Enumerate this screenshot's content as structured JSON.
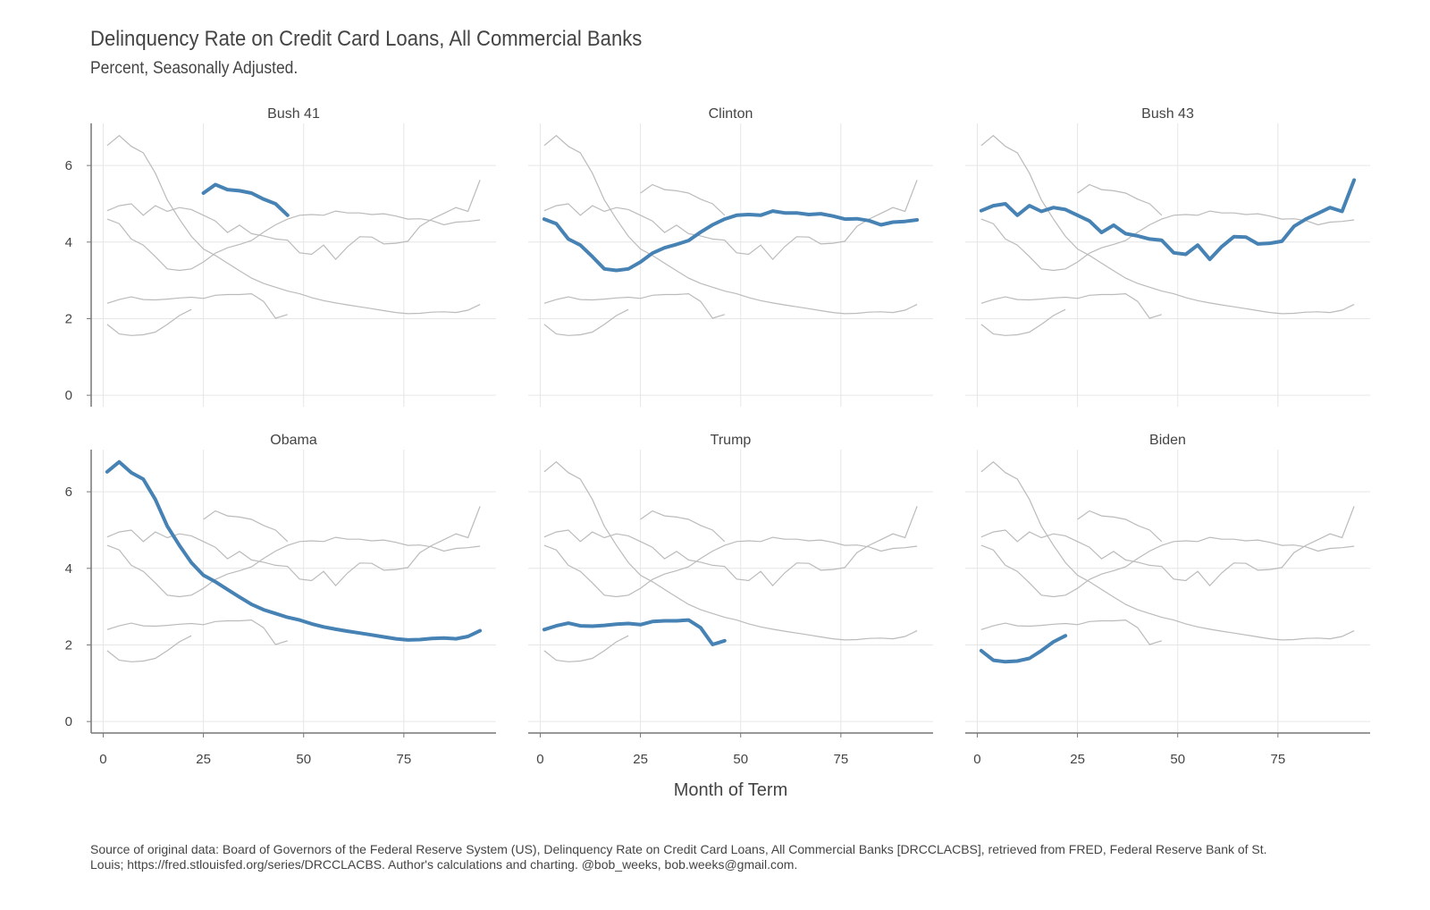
{
  "chart_data": {
    "type": "line",
    "title": "Delinquency Rate on Credit Card Loans, All Commercial Banks",
    "subtitle": "Percent, Seasonally Adjusted.",
    "xlabel": "Month of Term",
    "ylabel": "",
    "xlim": [
      -3,
      98
    ],
    "ylim": [
      -0.3,
      7.1
    ],
    "x_ticks": [
      0,
      25,
      50,
      75
    ],
    "y_ticks": [
      0,
      2,
      4,
      6
    ],
    "grid": true,
    "highlight_color": "#4682b4",
    "context_color": "#bbbbbb",
    "caption": "Source of original data: Board of Governors of the Federal Reserve System (US), Delinquency Rate on Credit Card Loans, All Commercial Banks [DRCCLACBS], retrieved from FRED, Federal Reserve Bank of St. Louis; https://fred.stlouisfed.org/series/DRCCLACBS. Author's calculations and charting. @bob_weeks, bob.weeks@gmail.com.",
    "panels": [
      "Bush 41",
      "Clinton",
      "Bush 43",
      "Obama",
      "Trump",
      "Biden"
    ],
    "series": [
      {
        "name": "Bush 41",
        "x": [
          25,
          28,
          31,
          34,
          37,
          40,
          43,
          46
        ],
        "y": [
          5.28,
          5.5,
          5.37,
          5.34,
          5.28,
          5.12,
          5.0,
          4.7
        ]
      },
      {
        "name": "Clinton",
        "x": [
          1,
          4,
          7,
          10,
          13,
          16,
          19,
          22,
          25,
          28,
          31,
          34,
          37,
          40,
          43,
          46,
          49,
          52,
          55,
          58,
          61,
          64,
          67,
          70,
          73,
          76,
          79,
          82,
          85,
          88,
          91,
          94
        ],
        "y": [
          4.6,
          4.48,
          4.08,
          3.92,
          3.62,
          3.3,
          3.26,
          3.3,
          3.48,
          3.71,
          3.85,
          3.94,
          4.04,
          4.26,
          4.45,
          4.6,
          4.7,
          4.72,
          4.7,
          4.81,
          4.76,
          4.76,
          4.72,
          4.74,
          4.68,
          4.6,
          4.61,
          4.56,
          4.45,
          4.52,
          4.54,
          4.58
        ]
      },
      {
        "name": "Bush 43",
        "x": [
          1,
          4,
          7,
          10,
          13,
          16,
          19,
          22,
          25,
          28,
          31,
          34,
          37,
          40,
          43,
          46,
          49,
          52,
          55,
          58,
          61,
          64,
          67,
          70,
          73,
          76,
          79,
          82,
          85,
          88,
          91,
          94
        ],
        "y": [
          4.82,
          4.95,
          5.0,
          4.7,
          4.95,
          4.8,
          4.9,
          4.85,
          4.7,
          4.55,
          4.25,
          4.44,
          4.22,
          4.16,
          4.08,
          4.05,
          3.72,
          3.68,
          3.92,
          3.55,
          3.88,
          4.14,
          4.13,
          3.95,
          3.97,
          4.02,
          4.41,
          4.6,
          4.75,
          4.9,
          4.8,
          5.62
        ]
      },
      {
        "name": "Obama",
        "x": [
          1,
          4,
          7,
          10,
          13,
          16,
          19,
          22,
          25,
          28,
          31,
          34,
          37,
          40,
          43,
          46,
          49,
          52,
          55,
          58,
          61,
          64,
          67,
          70,
          73,
          76,
          79,
          82,
          85,
          88,
          91,
          94
        ],
        "y": [
          6.52,
          6.78,
          6.5,
          6.33,
          5.8,
          5.1,
          4.6,
          4.15,
          3.82,
          3.65,
          3.45,
          3.25,
          3.06,
          2.92,
          2.82,
          2.72,
          2.65,
          2.55,
          2.47,
          2.41,
          2.36,
          2.31,
          2.26,
          2.21,
          2.16,
          2.13,
          2.14,
          2.17,
          2.18,
          2.16,
          2.22,
          2.37
        ]
      },
      {
        "name": "Trump",
        "x": [
          1,
          4,
          7,
          10,
          13,
          16,
          19,
          22,
          25,
          28,
          31,
          34,
          37,
          40,
          43,
          46
        ],
        "y": [
          2.4,
          2.5,
          2.57,
          2.5,
          2.49,
          2.51,
          2.54,
          2.56,
          2.53,
          2.61,
          2.63,
          2.63,
          2.65,
          2.45,
          2.01,
          2.11
        ]
      },
      {
        "name": "Biden",
        "x": [
          1,
          4,
          7,
          10,
          13,
          16,
          19,
          22
        ],
        "y": [
          1.85,
          1.6,
          1.56,
          1.58,
          1.65,
          1.85,
          2.08,
          2.24
        ]
      }
    ]
  }
}
